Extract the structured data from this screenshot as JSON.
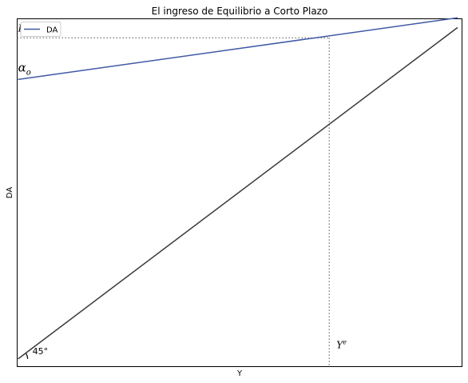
{
  "chart_data": {
    "type": "line",
    "title": "El ingreso de Equilibrio a Corto Plazo",
    "xlabel": "Y",
    "ylabel": "DA",
    "xlim": [
      -1,
      505
    ],
    "ylim": [
      -40,
      1765
    ],
    "grid": false,
    "legend_placement": "top-left",
    "series": [
      {
        "name": "DA",
        "color": "#4059a6",
        "x": [
          0,
          500
        ],
        "y": [
          1450,
          1770
        ]
      },
      {
        "name": "",
        "color": "#3a3a3a",
        "x": [
          0,
          500
        ],
        "y": [
          0,
          1720
        ]
      }
    ],
    "equilibrium": {
      "x": 354,
      "y": 1666
    },
    "annotations": {
      "da_e": "DA",
      "da_e_sup": "e",
      "alpha": "α",
      "alpha_sub": "o",
      "y_e": "Y",
      "y_e_sup": "e",
      "angle": "45°"
    }
  }
}
